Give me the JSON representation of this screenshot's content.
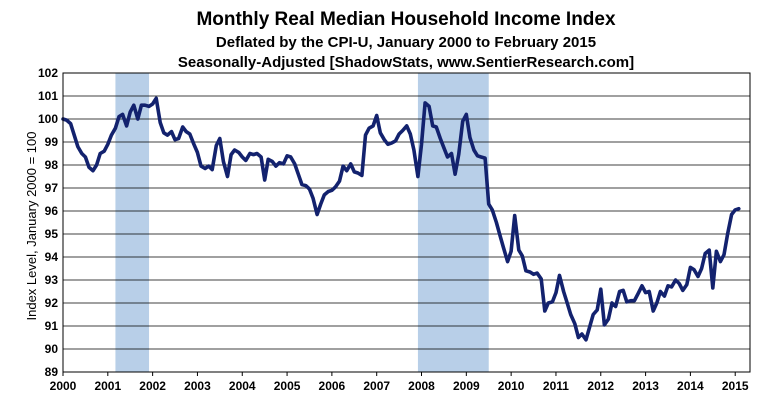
{
  "chart_data": {
    "type": "line",
    "title": "Monthly Real Median Household Income Index",
    "subtitle_1": "Deflated by the CPI-U, January 2000 to February 2015",
    "subtitle_2": "Seasonally-Adjusted [ShadowStats, www.SentierResearch.com]",
    "ylabel": "Index Level, January 2000 = 100",
    "xlabel": "",
    "xlim": [
      2000.0,
      2015.33
    ],
    "ylim": [
      89,
      102
    ],
    "y_ticks": [
      89,
      90,
      91,
      92,
      93,
      94,
      95,
      96,
      97,
      98,
      99,
      100,
      101,
      102
    ],
    "x_ticks": [
      2000,
      2001,
      2002,
      2003,
      2004,
      2005,
      2006,
      2007,
      2008,
      2009,
      2010,
      2011,
      2012,
      2013,
      2014,
      2015
    ],
    "grid": "horizontal",
    "legend": "none",
    "line_color": "#13226e",
    "shade_color": "#b8cfe8",
    "recessions": [
      {
        "start": 2001.17,
        "end": 2001.92
      },
      {
        "start": 2007.92,
        "end": 2009.5
      }
    ],
    "series": [
      {
        "x": [
          2000.0,
          2000.08,
          2000.17,
          2000.25,
          2000.33,
          2000.42,
          2000.5,
          2000.58,
          2000.67,
          2000.75,
          2000.83,
          2000.92,
          2001.0,
          2001.08,
          2001.17,
          2001.25,
          2001.33,
          2001.42,
          2001.5,
          2001.58,
          2001.67,
          2001.75,
          2001.83,
          2001.92,
          2002.0,
          2002.08,
          2002.17,
          2002.25,
          2002.33,
          2002.42,
          2002.5,
          2002.58,
          2002.67,
          2002.75,
          2002.83,
          2002.92,
          2003.0,
          2003.08,
          2003.17,
          2003.25,
          2003.33,
          2003.42,
          2003.5,
          2003.58,
          2003.67,
          2003.75,
          2003.83,
          2003.92,
          2004.0,
          2004.08,
          2004.17,
          2004.25,
          2004.33,
          2004.42,
          2004.5,
          2004.58,
          2004.67,
          2004.75,
          2004.83,
          2004.92,
          2005.0,
          2005.08,
          2005.17,
          2005.25,
          2005.33,
          2005.42,
          2005.5,
          2005.58,
          2005.67,
          2005.75,
          2005.83,
          2005.92,
          2006.0,
          2006.08,
          2006.17,
          2006.25,
          2006.33,
          2006.42,
          2006.5,
          2006.58,
          2006.67,
          2006.75,
          2006.83,
          2006.92,
          2007.0,
          2007.08,
          2007.17,
          2007.25,
          2007.33,
          2007.42,
          2007.5,
          2007.58,
          2007.67,
          2007.75,
          2007.83,
          2007.92,
          2008.0,
          2008.08,
          2008.17,
          2008.25,
          2008.33,
          2008.42,
          2008.5,
          2008.58,
          2008.67,
          2008.75,
          2008.83,
          2008.92,
          2009.0,
          2009.08,
          2009.17,
          2009.25,
          2009.33,
          2009.42,
          2009.5,
          2009.58,
          2009.67,
          2009.75,
          2009.83,
          2009.92,
          2010.0,
          2010.08,
          2010.17,
          2010.25,
          2010.33,
          2010.42,
          2010.5,
          2010.58,
          2010.67,
          2010.75,
          2010.83,
          2010.92,
          2011.0,
          2011.08,
          2011.17,
          2011.25,
          2011.33,
          2011.42,
          2011.5,
          2011.58,
          2011.67,
          2011.75,
          2011.83,
          2011.92,
          2012.0,
          2012.08,
          2012.17,
          2012.25,
          2012.33,
          2012.42,
          2012.5,
          2012.58,
          2012.67,
          2012.75,
          2012.83,
          2012.92,
          2013.0,
          2013.08,
          2013.17,
          2013.25,
          2013.33,
          2013.42,
          2013.5,
          2013.58,
          2013.67,
          2013.75,
          2013.83,
          2013.92,
          2014.0,
          2014.08,
          2014.17,
          2014.25,
          2014.33,
          2014.42,
          2014.5,
          2014.58,
          2014.67,
          2014.75,
          2014.83,
          2014.92,
          2015.0,
          2015.08
        ],
        "values": [
          100.0,
          99.95,
          99.8,
          99.3,
          98.8,
          98.5,
          98.35,
          97.9,
          97.75,
          98.0,
          98.5,
          98.6,
          98.9,
          99.3,
          99.6,
          100.1,
          100.2,
          99.7,
          100.3,
          100.6,
          100.0,
          100.6,
          100.6,
          100.55,
          100.65,
          100.9,
          99.85,
          99.4,
          99.3,
          99.45,
          99.1,
          99.15,
          99.65,
          99.45,
          99.35,
          98.9,
          98.55,
          97.95,
          97.85,
          97.95,
          97.8,
          98.85,
          99.15,
          98.15,
          97.5,
          98.45,
          98.65,
          98.55,
          98.35,
          98.2,
          98.5,
          98.45,
          98.5,
          98.35,
          97.35,
          98.25,
          98.15,
          97.95,
          98.1,
          98.05,
          98.4,
          98.35,
          98.05,
          97.6,
          97.15,
          97.1,
          96.95,
          96.55,
          95.85,
          96.3,
          96.7,
          96.85,
          96.9,
          97.05,
          97.3,
          97.95,
          97.75,
          98.05,
          97.7,
          97.65,
          97.55,
          99.3,
          99.6,
          99.7,
          100.15,
          99.4,
          99.1,
          98.9,
          98.95,
          99.05,
          99.35,
          99.5,
          99.7,
          99.35,
          98.65,
          97.5,
          98.9,
          100.7,
          100.55,
          99.7,
          99.65,
          99.15,
          98.75,
          98.35,
          98.5,
          97.6,
          98.45,
          99.9,
          100.2,
          99.2,
          98.65,
          98.4,
          98.35,
          98.3,
          96.3,
          96.05,
          95.5,
          94.95,
          94.4,
          93.8,
          94.25,
          95.8,
          94.3,
          94.05,
          93.4,
          93.35,
          93.25,
          93.3,
          93.05,
          91.65,
          92.0,
          92.05,
          92.45,
          93.2,
          92.5,
          92.0,
          91.5,
          91.1,
          90.5,
          90.65,
          90.4,
          90.95,
          91.5,
          91.7,
          92.6,
          91.05,
          91.3,
          92.0,
          91.85,
          92.5,
          92.55,
          92.05,
          92.1,
          92.1,
          92.4,
          92.75,
          92.45,
          92.5,
          91.65,
          92.0,
          92.5,
          92.3,
          92.75,
          92.7,
          93.0,
          92.85,
          92.55,
          92.8,
          93.55,
          93.45,
          93.15,
          93.5,
          94.15,
          94.3,
          92.65,
          94.25,
          93.8,
          94.1,
          95.0,
          95.85,
          96.05,
          96.1
        ]
      }
    ]
  }
}
